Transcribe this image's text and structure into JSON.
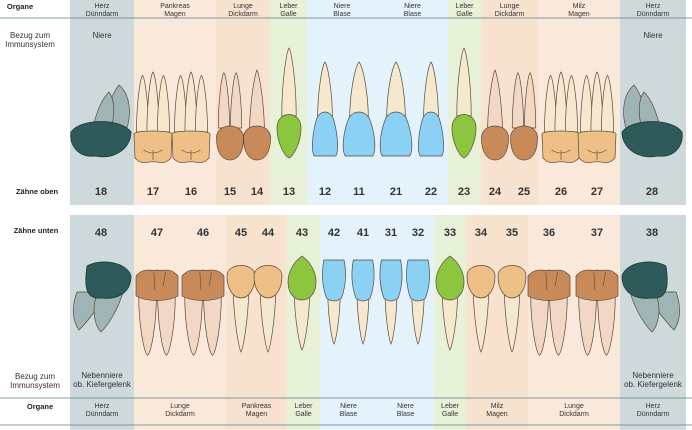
{
  "labels": {
    "organe_top": "Organe",
    "bezug_top": "Bezug zum\nImmunsystem",
    "zaehne_oben": "Zähne oben",
    "zaehne_unten": "Zähne unten",
    "bezug_bottom": "Bezug zum\nImmunsystem",
    "organe_bottom": "Organe"
  },
  "colors": {
    "grey_bg": "#cdd9da",
    "peach_bg": "#fae8db",
    "tan_bg": "#f7e2d0",
    "green_bg": "#e6f1d8",
    "blue_bg": "#e3f2fb",
    "grey_tooth": "#2e5a5a",
    "grey_root": "#9fb4b5",
    "brown_tooth": "#c98a5a",
    "tan_tooth": "#eebf86",
    "green_tooth": "#8cc63f",
    "blue_tooth": "#8ad1f5",
    "root_pink": "#f1d7c6",
    "root_cream": "#f6e8cf"
  },
  "upper": {
    "groups": [
      {
        "organs": "Herz\nDünndarm",
        "immune": "Niere",
        "color": "grey"
      },
      {
        "organs": "Pankreas\nMagen",
        "immune": "",
        "color": "peach"
      },
      {
        "organs": "Lunge\nDickdarm",
        "immune": "",
        "color": "tan"
      },
      {
        "organs": "Leber\nGalle",
        "immune": "",
        "color": "green"
      },
      {
        "organs": "Niere\nBlase",
        "immune": "",
        "color": "blue"
      },
      {
        "organs": "Niere\nBlase",
        "immune": "",
        "color": "blue"
      },
      {
        "organs": "Leber\nGalle",
        "immune": "",
        "color": "green"
      },
      {
        "organs": "Lunge\nDickdarm",
        "immune": "",
        "color": "tan"
      },
      {
        "organs": "Milz\nMagen",
        "immune": "",
        "color": "peach"
      },
      {
        "organs": "Herz\nDünndarm",
        "immune": "Niere",
        "color": "grey"
      }
    ],
    "teeth": [
      {
        "number": "18",
        "kind": "molar_side",
        "color": "grey"
      },
      {
        "number": "17",
        "kind": "molar",
        "color": "tan"
      },
      {
        "number": "16",
        "kind": "molar",
        "color": "tan"
      },
      {
        "number": "15",
        "kind": "premolar",
        "color": "brown"
      },
      {
        "number": "14",
        "kind": "premolar",
        "color": "brown"
      },
      {
        "number": "13",
        "kind": "canine",
        "color": "green"
      },
      {
        "number": "12",
        "kind": "incisor",
        "color": "blue"
      },
      {
        "number": "11",
        "kind": "incisor_wide",
        "color": "blue"
      },
      {
        "number": "21",
        "kind": "incisor_wide",
        "color": "blue"
      },
      {
        "number": "22",
        "kind": "incisor",
        "color": "blue"
      },
      {
        "number": "23",
        "kind": "canine",
        "color": "green"
      },
      {
        "number": "24",
        "kind": "premolar",
        "color": "brown"
      },
      {
        "number": "25",
        "kind": "premolar",
        "color": "brown"
      },
      {
        "number": "26",
        "kind": "molar",
        "color": "tan"
      },
      {
        "number": "27",
        "kind": "molar",
        "color": "tan"
      },
      {
        "number": "28",
        "kind": "molar_side",
        "color": "grey"
      }
    ]
  },
  "lower": {
    "groups": [
      {
        "organs": "Herz\nDünndarm",
        "immune": "Nebenniere\nob. Kiefergelenk",
        "color": "grey"
      },
      {
        "organs": "Lunge\nDickdarm",
        "immune": "",
        "color": "peach"
      },
      {
        "organs": "Pankreas\nMagen",
        "immune": "",
        "color": "tan"
      },
      {
        "organs": "Leber\nGalle",
        "immune": "",
        "color": "green"
      },
      {
        "organs": "Niere\nBlase",
        "immune": "",
        "color": "blue"
      },
      {
        "organs": "Niere\nBlase",
        "immune": "",
        "color": "blue"
      },
      {
        "organs": "Leber\nGalle",
        "immune": "",
        "color": "green"
      },
      {
        "organs": "Milz\nMagen",
        "immune": "",
        "color": "tan"
      },
      {
        "organs": "Lunge\nDickdarm",
        "immune": "",
        "color": "peach"
      },
      {
        "organs": "Herz\nDünndarm",
        "immune": "Nebenniere\nob. Kiefergelenk",
        "color": "grey"
      }
    ],
    "teeth": [
      {
        "number": "48",
        "kind": "molar_side",
        "color": "grey"
      },
      {
        "number": "47",
        "kind": "molar",
        "color": "brown"
      },
      {
        "number": "46",
        "kind": "molar",
        "color": "brown"
      },
      {
        "number": "45",
        "kind": "premolar",
        "color": "tan"
      },
      {
        "number": "44",
        "kind": "premolar",
        "color": "tan"
      },
      {
        "number": "43",
        "kind": "canine",
        "color": "green"
      },
      {
        "number": "42",
        "kind": "incisor",
        "color": "blue"
      },
      {
        "number": "41",
        "kind": "incisor",
        "color": "blue"
      },
      {
        "number": "31",
        "kind": "incisor",
        "color": "blue"
      },
      {
        "number": "32",
        "kind": "incisor",
        "color": "blue"
      },
      {
        "number": "33",
        "kind": "canine",
        "color": "green"
      },
      {
        "number": "34",
        "kind": "premolar",
        "color": "tan"
      },
      {
        "number": "35",
        "kind": "premolar",
        "color": "tan"
      },
      {
        "number": "36",
        "kind": "molar",
        "color": "brown"
      },
      {
        "number": "37",
        "kind": "molar",
        "color": "brown"
      },
      {
        "number": "38",
        "kind": "molar_side",
        "color": "grey"
      }
    ]
  }
}
